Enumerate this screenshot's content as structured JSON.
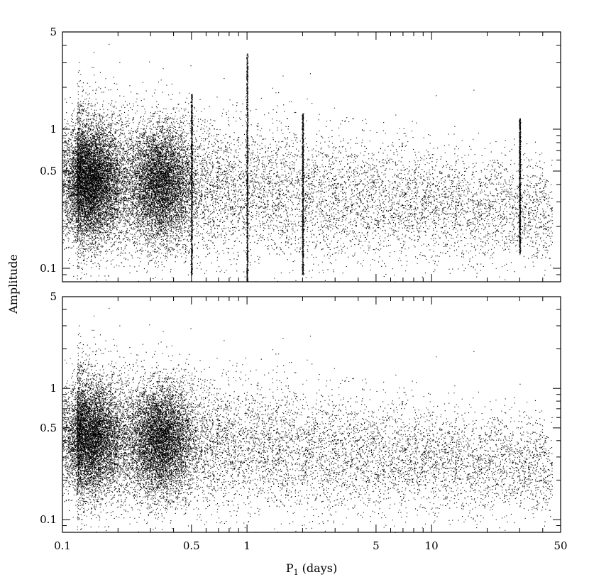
{
  "chart_data": [
    {
      "type": "scatter",
      "panel": "top",
      "xscale": "log",
      "yscale": "log",
      "xlim": [
        0.1,
        50
      ],
      "ylim": [
        0.08,
        5
      ],
      "x_ticks": [
        0.1,
        0.5,
        1,
        5,
        10,
        50
      ],
      "y_ticks": [
        0.1,
        0.5,
        1,
        5
      ],
      "y_tick_labels": [
        "0.1",
        "0.5",
        "1",
        "5"
      ],
      "clusters": [
        {
          "x": 0.14,
          "y": 0.42,
          "count": 12000
        },
        {
          "x": 0.34,
          "y": 0.4,
          "count": 9000
        }
      ],
      "aliasing_lines": [
        {
          "x": 0.5,
          "y_range": [
            0.09,
            1.8
          ]
        },
        {
          "x": 1.0,
          "y_range": [
            0.08,
            3.5
          ]
        },
        {
          "x": 2.0,
          "y_range": [
            0.09,
            1.3
          ]
        },
        {
          "x": 30.0,
          "y_range": [
            0.13,
            1.2
          ]
        }
      ]
    },
    {
      "type": "scatter",
      "panel": "bottom",
      "xscale": "log",
      "yscale": "log",
      "xlim": [
        0.1,
        50
      ],
      "ylim": [
        0.08,
        5
      ],
      "x_ticks": [
        0.1,
        0.5,
        1,
        5,
        10,
        50
      ],
      "x_tick_labels": [
        "0.1",
        "0.5",
        "1",
        "5",
        "10",
        "50"
      ],
      "y_ticks": [
        0.1,
        0.5,
        1,
        5
      ],
      "y_tick_labels": [
        "0.1",
        "0.5",
        "1",
        "5"
      ],
      "clusters": [
        {
          "x": 0.14,
          "y": 0.42,
          "count": 11000
        },
        {
          "x": 0.34,
          "y": 0.4,
          "count": 8000
        }
      ]
    }
  ],
  "axes": {
    "ylabel": "Amplitude",
    "xlabel_main": "P",
    "xlabel_sub": "1",
    "xlabel_unit": " (days)"
  },
  "colors": {
    "points": "#000000",
    "background": "#ffffff"
  }
}
